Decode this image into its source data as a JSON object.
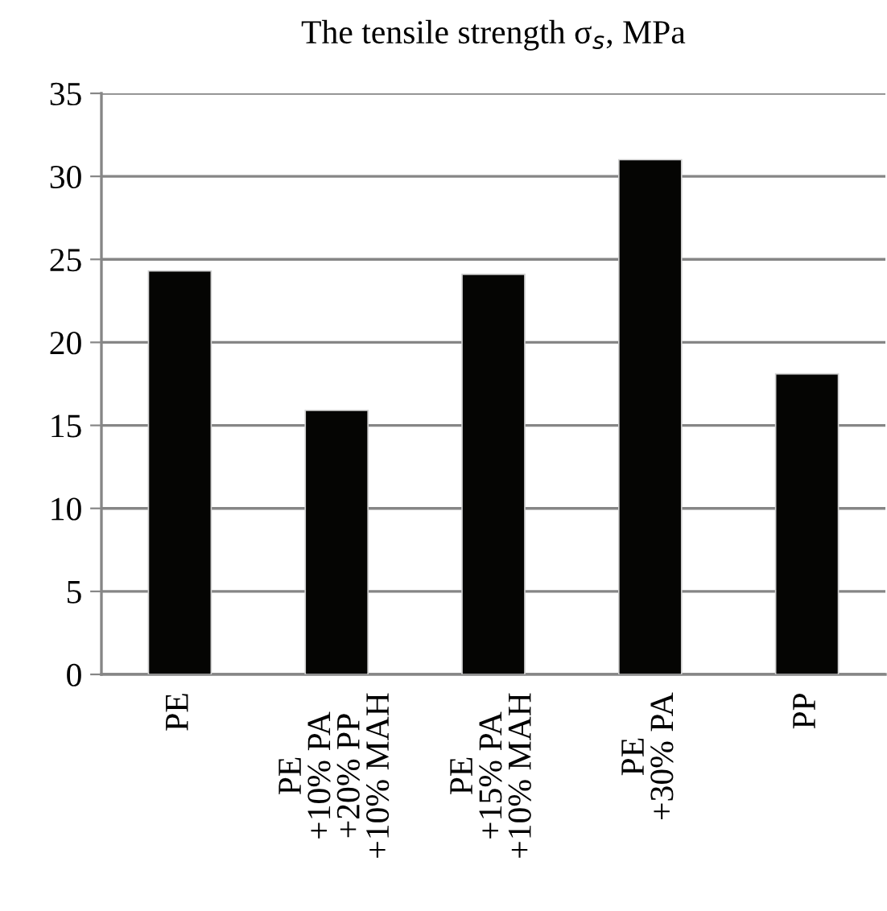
{
  "chart_data": {
    "type": "bar",
    "title": "The tensile strength σ$_{s}$, MPa",
    "categories": [
      "PE",
      "PE\n+10% PA\n+20% PP\n+10% MAH",
      "PE\n+15% PA\n+10% MAH",
      "PE\n+30% PA",
      "PP"
    ],
    "values": [
      24.3,
      15.9,
      24.1,
      31.0,
      18.1
    ],
    "color": "#050503",
    "ylim": [
      0,
      35
    ],
    "yticks": [
      0,
      5,
      10,
      15,
      20,
      25,
      30,
      35
    ],
    "grid": "y"
  }
}
